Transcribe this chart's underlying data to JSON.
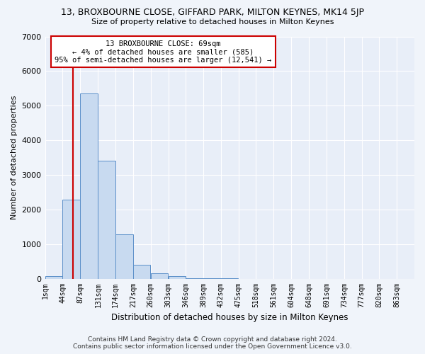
{
  "title1": "13, BROXBOURNE CLOSE, GIFFARD PARK, MILTON KEYNES, MK14 5JP",
  "title2": "Size of property relative to detached houses in Milton Keynes",
  "xlabel": "Distribution of detached houses by size in Milton Keynes",
  "ylabel": "Number of detached properties",
  "footer1": "Contains HM Land Registry data © Crown copyright and database right 2024.",
  "footer2": "Contains public sector information licensed under the Open Government Licence v3.0.",
  "bin_labels": [
    "1sqm",
    "44sqm",
    "87sqm",
    "131sqm",
    "174sqm",
    "217sqm",
    "260sqm",
    "303sqm",
    "346sqm",
    "389sqm",
    "432sqm",
    "475sqm",
    "518sqm",
    "561sqm",
    "604sqm",
    "648sqm",
    "691sqm",
    "734sqm",
    "777sqm",
    "820sqm",
    "863sqm"
  ],
  "bar_values": [
    80,
    2280,
    5350,
    3400,
    1280,
    390,
    145,
    75,
    20,
    5,
    2,
    1,
    0,
    0,
    0,
    0,
    0,
    0,
    0,
    0
  ],
  "bin_edges": [
    1,
    44,
    87,
    131,
    174,
    217,
    260,
    303,
    346,
    389,
    432,
    475,
    518,
    561,
    604,
    648,
    691,
    734,
    777,
    820,
    863
  ],
  "bar_color": "#c8daf0",
  "bar_edge_color": "#5b8fc9",
  "background_color": "#e8eef8",
  "grid_color": "#ffffff",
  "property_size": 69,
  "annotation_text1": "13 BROXBOURNE CLOSE: 69sqm",
  "annotation_text2": "← 4% of detached houses are smaller (585)",
  "annotation_text3": "95% of semi-detached houses are larger (12,541) →",
  "vline_color": "#cc0000",
  "annotation_box_color": "#ffffff",
  "annotation_box_edge": "#cc0000",
  "ylim": [
    0,
    7000
  ],
  "yticks": [
    0,
    1000,
    2000,
    3000,
    4000,
    5000,
    6000,
    7000
  ]
}
